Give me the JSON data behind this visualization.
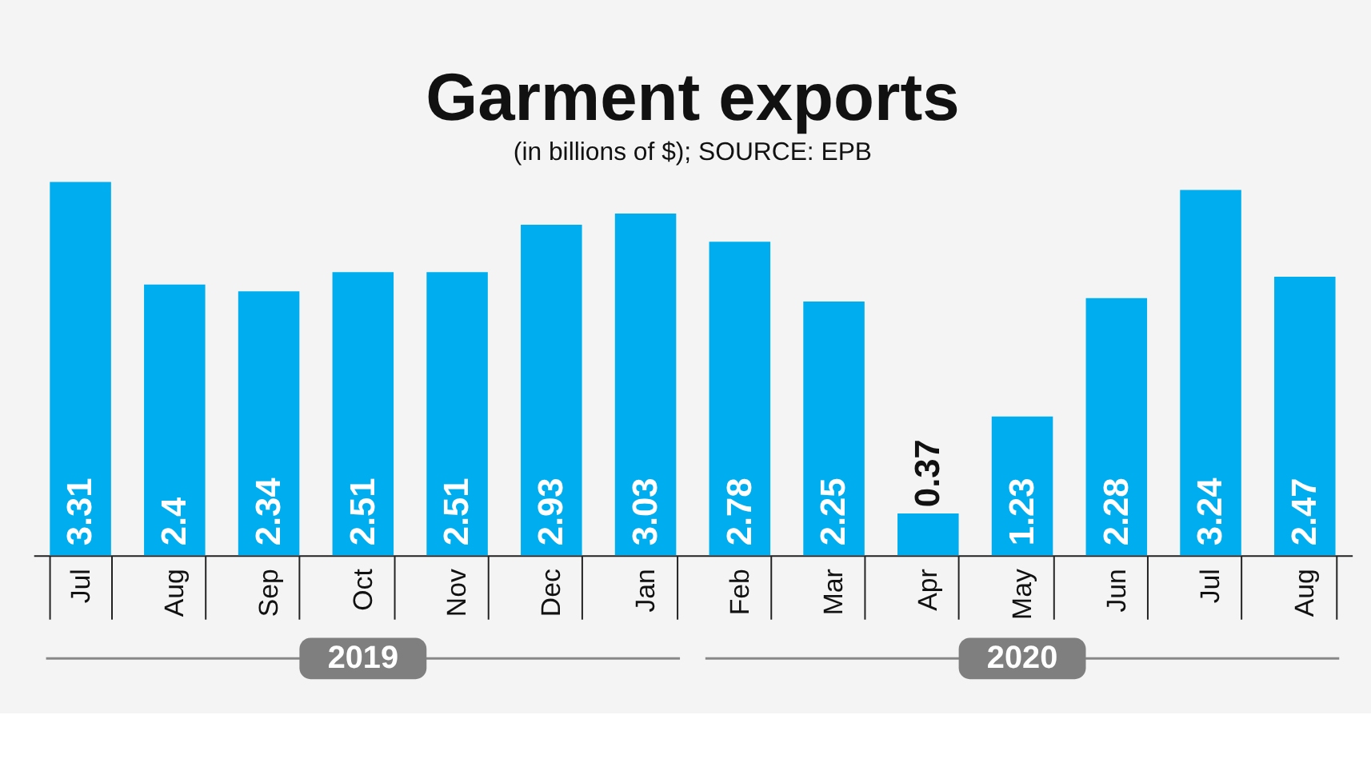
{
  "chart_data": {
    "type": "bar",
    "title": "Garment exports",
    "subtitle": "(in billions of $); SOURCE: EPB",
    "categories": [
      "Jul",
      "Aug",
      "Sep",
      "Oct",
      "Nov",
      "Dec",
      "Jan",
      "Feb",
      "Mar",
      "Apr",
      "May",
      "Jun",
      "Jul",
      "Aug"
    ],
    "values": [
      3.31,
      2.4,
      2.34,
      2.51,
      2.51,
      2.93,
      3.03,
      2.78,
      2.25,
      0.37,
      1.23,
      2.28,
      3.24,
      2.47
    ],
    "color": "#00aeef",
    "data_labels": true,
    "annotations": [
      "2019",
      "2020"
    ]
  }
}
